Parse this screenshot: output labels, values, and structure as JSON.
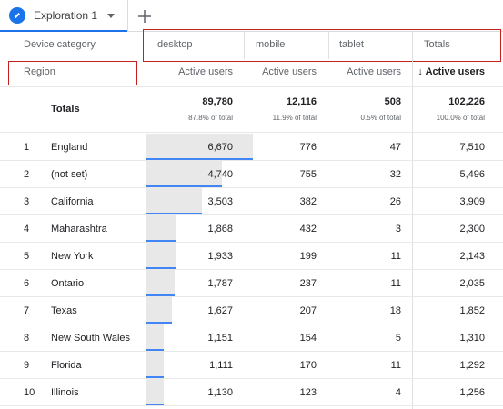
{
  "tab": {
    "title": "Exploration 1",
    "add_label": "+"
  },
  "dimensions": {
    "column_dimension": "Device category",
    "row_dimension": "Region"
  },
  "columns": [
    {
      "label": "desktop",
      "metric": "Active users",
      "total": "89,780",
      "total_pct": "87.8% of total"
    },
    {
      "label": "mobile",
      "metric": "Active users",
      "total": "12,116",
      "total_pct": "11.9% of total"
    },
    {
      "label": "tablet",
      "metric": "Active users",
      "total": "508",
      "total_pct": "0.5% of total"
    },
    {
      "label": "Totals",
      "metric": "↓ Active users",
      "total": "102,226",
      "total_pct": "100.0% of total"
    }
  ],
  "totals_label": "Totals",
  "rows": [
    {
      "num": "1",
      "region": "England",
      "desktop": "6,670",
      "mobile": "776",
      "tablet": "47",
      "total": "7,510",
      "desktop_share": 1.0
    },
    {
      "num": "2",
      "region": "(not set)",
      "desktop": "4,740",
      "mobile": "755",
      "tablet": "32",
      "total": "5,496",
      "desktop_share": 0.711
    },
    {
      "num": "3",
      "region": "California",
      "desktop": "3,503",
      "mobile": "382",
      "tablet": "26",
      "total": "3,909",
      "desktop_share": 0.525
    },
    {
      "num": "4",
      "region": "Maharashtra",
      "desktop": "1,868",
      "mobile": "432",
      "tablet": "3",
      "total": "2,300",
      "desktop_share": 0.28
    },
    {
      "num": "5",
      "region": "New York",
      "desktop": "1,933",
      "mobile": "199",
      "tablet": "11",
      "total": "2,143",
      "desktop_share": 0.29
    },
    {
      "num": "6",
      "region": "Ontario",
      "desktop": "1,787",
      "mobile": "237",
      "tablet": "11",
      "total": "2,035",
      "desktop_share": 0.268
    },
    {
      "num": "7",
      "region": "Texas",
      "desktop": "1,627",
      "mobile": "207",
      "tablet": "18",
      "total": "1,852",
      "desktop_share": 0.244
    },
    {
      "num": "8",
      "region": "New South Wales",
      "desktop": "1,151",
      "mobile": "154",
      "tablet": "5",
      "total": "1,310",
      "desktop_share": 0.173
    },
    {
      "num": "9",
      "region": "Florida",
      "desktop": "1,111",
      "mobile": "170",
      "tablet": "11",
      "total": "1,292",
      "desktop_share": 0.167
    },
    {
      "num": "10",
      "region": "Illinois",
      "desktop": "1,130",
      "mobile": "123",
      "tablet": "4",
      "total": "1,256",
      "desktop_share": 0.169
    }
  ],
  "colors": {
    "accent": "#1a73e8",
    "bar": "#4285f4",
    "bar_bg": "#e8e8e8",
    "highlight": "#c5221f"
  },
  "icons": {
    "tab_icon": "pencil-icon",
    "add": "plus-icon",
    "caret": "caret-down-icon"
  }
}
